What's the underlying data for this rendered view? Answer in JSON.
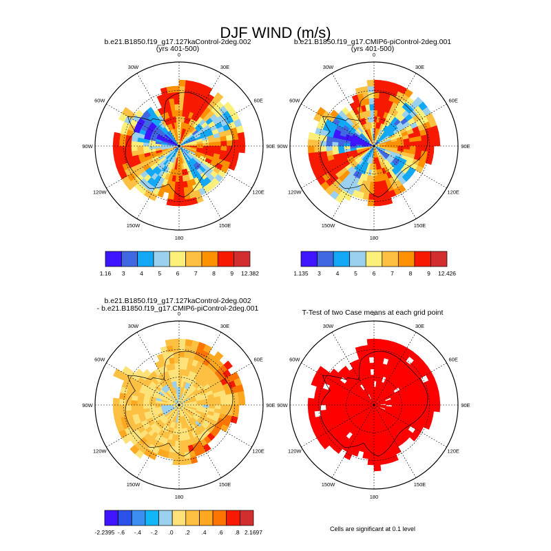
{
  "figure": {
    "title": "DJF WIND (m/s)"
  },
  "chart_data": [
    {
      "type": "heatmap",
      "projection": "south-polar-stereographic",
      "title_lines": [
        "b.e21.B1850.f19_g17.127kaControl-2deg.002",
        "(yrs 401-500)"
      ],
      "lon_labels": [
        "0",
        "30E",
        "60E",
        "90E",
        "120E",
        "150E",
        "180",
        "150W",
        "120W",
        "90W",
        "60W",
        "30W"
      ],
      "colorbar": {
        "colors": [
          "#3f14ff",
          "#4069e1",
          "#12a8f5",
          "#9bd1ee",
          "#fcf07a",
          "#fcc042",
          "#fd9100",
          "#f71a00",
          "#d32e2f"
        ],
        "tick_labels": [
          "1.16",
          "3",
          "4",
          "5",
          "6",
          "7",
          "8",
          "9",
          "12.382"
        ],
        "levels": [
          3,
          4,
          5,
          6,
          7,
          8,
          9
        ],
        "range": [
          1.16,
          12.382
        ]
      }
    },
    {
      "type": "heatmap",
      "projection": "south-polar-stereographic",
      "title_lines": [
        "b.e21.B1850.f19_g17.CMIP6-piControl-2deg.001",
        "(yrs 401-500)"
      ],
      "lon_labels": [
        "0",
        "30E",
        "60E",
        "90E",
        "120E",
        "150E",
        "180",
        "150W",
        "120W",
        "90W",
        "60W",
        "30W"
      ],
      "colorbar": {
        "colors": [
          "#3f14ff",
          "#4069e1",
          "#12a8f5",
          "#9bd1ee",
          "#fcf07a",
          "#fcc042",
          "#fd9100",
          "#f71a00",
          "#d32e2f"
        ],
        "tick_labels": [
          "1.135",
          "3",
          "4",
          "5",
          "6",
          "7",
          "8",
          "9",
          "12.426"
        ],
        "levels": [
          3,
          4,
          5,
          6,
          7,
          8,
          9
        ],
        "range": [
          1.135,
          12.426
        ]
      }
    },
    {
      "type": "heatmap",
      "projection": "south-polar-stereographic",
      "title_lines": [
        "b.e21.B1850.f19_g17.127kaControl-2deg.002",
        "- b.e21.B1850.f19_g17.CMIP6-piControl-2deg.001"
      ],
      "lon_labels": [
        "0",
        "30E",
        "60E",
        "90E",
        "120E",
        "150E",
        "180",
        "150W",
        "120W",
        "90W",
        "60W",
        "30W"
      ],
      "colorbar": {
        "colors": [
          "#3f14ff",
          "#2b52e8",
          "#3a8ff0",
          "#12b6f6",
          "#9bd1ee",
          "#fde27a",
          "#fcc042",
          "#fda820",
          "#fd7500",
          "#f71a00",
          "#d32e2f"
        ],
        "tick_labels": [
          "-2.2395",
          "-.6",
          "-.4",
          "-.2",
          ".0",
          ".2",
          ".4",
          ".6",
          ".8",
          "2.1697"
        ],
        "levels": [
          -0.8,
          -0.6,
          -0.4,
          -0.2,
          0.0,
          0.2,
          0.4,
          0.6,
          0.8
        ],
        "range": [
          -2.2395,
          2.1697
        ]
      }
    },
    {
      "type": "heatmap",
      "projection": "south-polar-stereographic",
      "title_lines": [
        "T-Test of two Case means at each grid point"
      ],
      "lon_labels": [
        "0",
        "30E",
        "60E",
        "90E",
        "120E",
        "150E",
        "180",
        "150W",
        "120W",
        "90W",
        "60W",
        "30W"
      ],
      "significant_color": "#ff0000",
      "note": "Cells are significant at 0.1 level"
    }
  ]
}
